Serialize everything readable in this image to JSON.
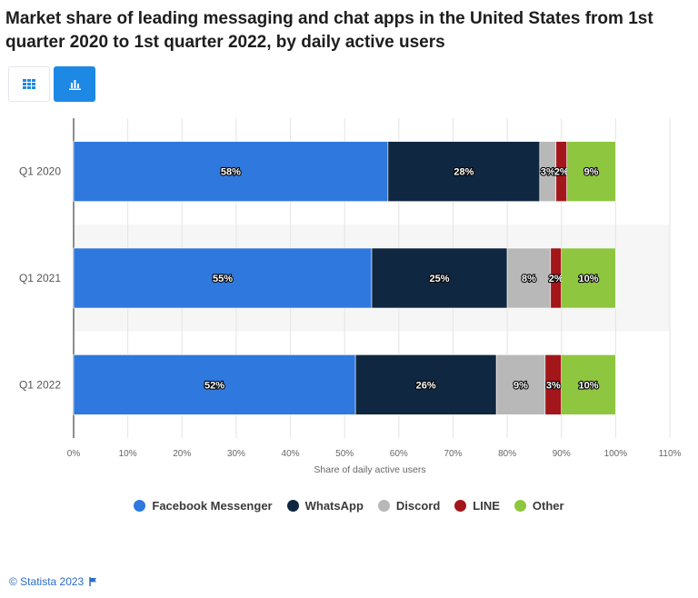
{
  "header": {
    "title": "Market share of leading messaging and chat apps in the United States from 1st quarter 2020 to 1st quarter 2022, by daily active users"
  },
  "view_toggle": {
    "table_icon": "table-grid-icon",
    "chart_icon": "bar-chart-icon",
    "active": "chart"
  },
  "chart_data": {
    "type": "bar",
    "orientation": "horizontal",
    "stacked": true,
    "categories": [
      "Q1 2020",
      "Q1 2021",
      "Q1 2022"
    ],
    "series": [
      {
        "name": "Facebook Messenger",
        "color": "#2f78dd",
        "values": [
          58,
          55,
          52
        ],
        "labels": [
          "58%",
          "55%",
          "52%"
        ]
      },
      {
        "name": "WhatsApp",
        "color": "#0f2740",
        "values": [
          28,
          25,
          26
        ],
        "labels": [
          "28%",
          "25%",
          "26%"
        ]
      },
      {
        "name": "Discord",
        "color": "#b8b8b8",
        "values": [
          3,
          8,
          9
        ],
        "labels": [
          "3%",
          "8%",
          "9%"
        ]
      },
      {
        "name": "LINE",
        "color": "#a3161a",
        "values": [
          2,
          2,
          3
        ],
        "labels": [
          "2%",
          "2%",
          "3%"
        ]
      },
      {
        "name": "Other",
        "color": "#8ec63f",
        "values": [
          9,
          10,
          10
        ],
        "labels": [
          "9%",
          "10%",
          "10%"
        ]
      }
    ],
    "xlabel": "Share of daily active users",
    "ylabel": "",
    "xlim": [
      0,
      110
    ],
    "ticks": [
      "0%",
      "10%",
      "20%",
      "30%",
      "40%",
      "50%",
      "60%",
      "70%",
      "80%",
      "90%",
      "100%",
      "110%"
    ],
    "grid": true,
    "legend_position": "bottom"
  },
  "footer": {
    "copyright": "© Statista 2023",
    "flag_icon": "flag-icon"
  }
}
